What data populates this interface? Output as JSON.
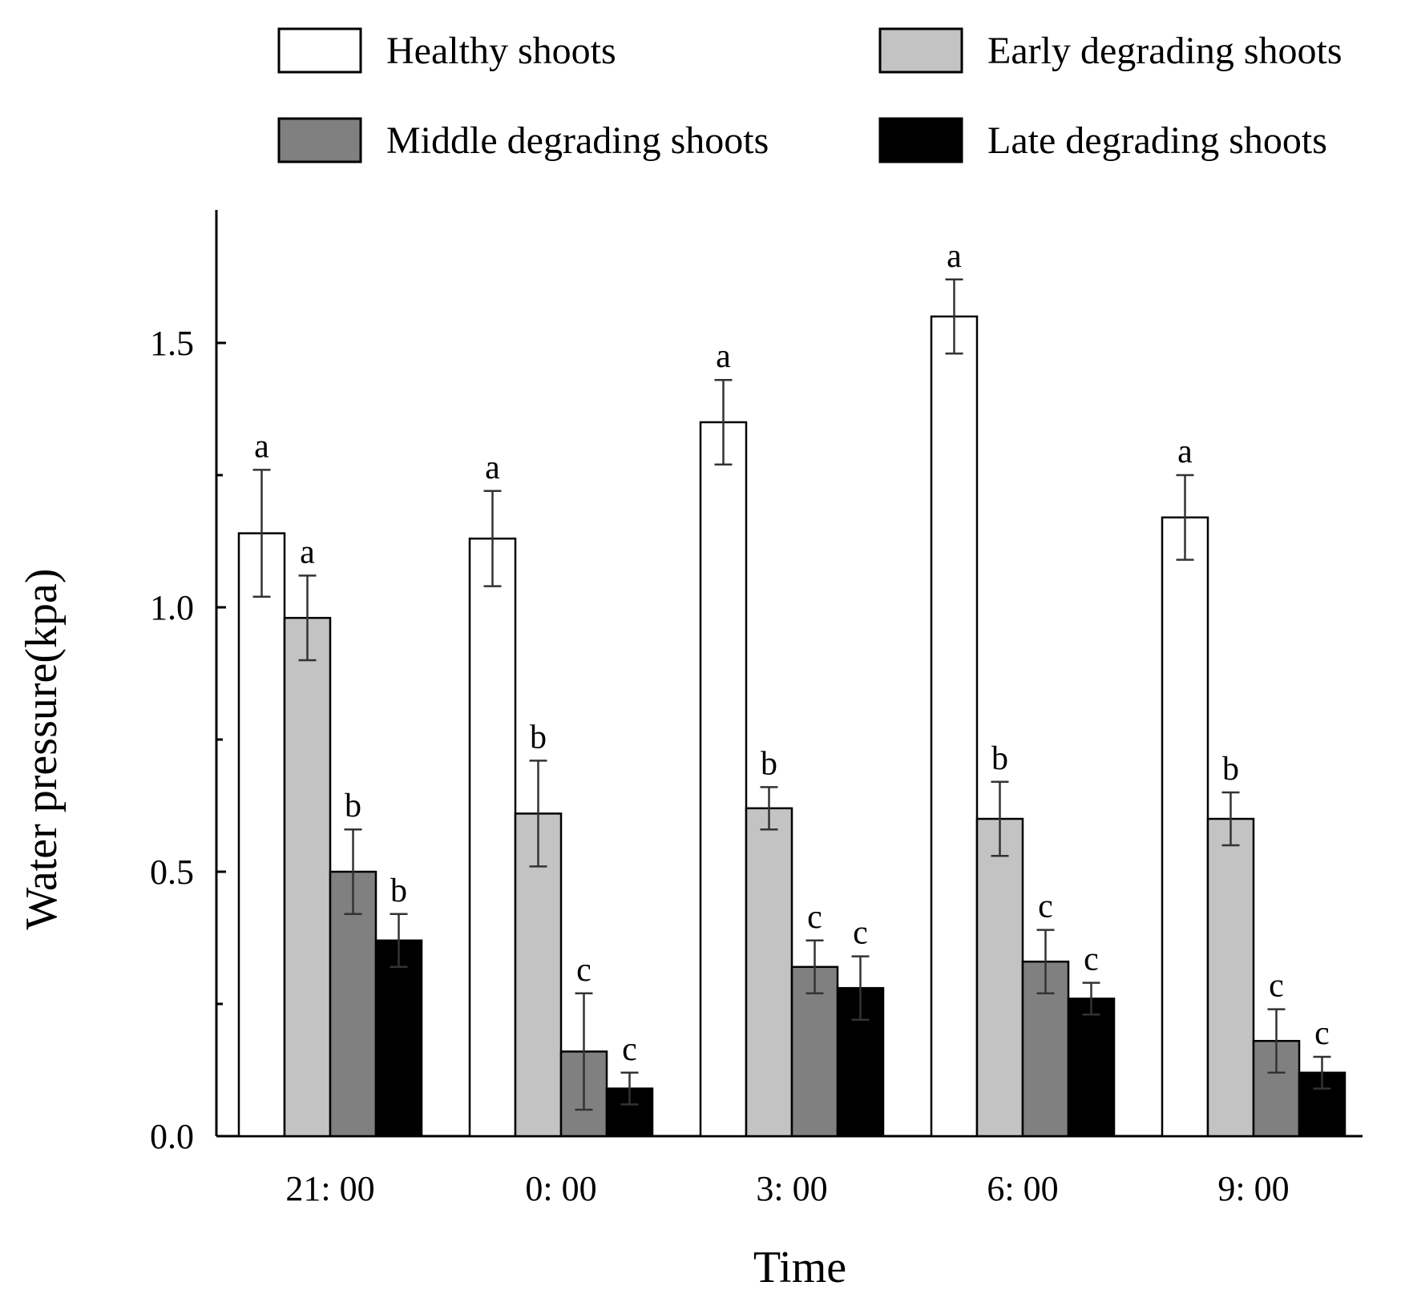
{
  "chart_data": {
    "type": "bar",
    "categories": [
      "21: 00",
      "0: 00",
      "3: 00",
      "6: 00",
      "9: 00"
    ],
    "series": [
      {
        "name": "Healthy shoots",
        "color": "#ffffff",
        "values": [
          1.14,
          1.13,
          1.35,
          1.55,
          1.17
        ],
        "errors": [
          0.12,
          0.09,
          0.08,
          0.07,
          0.08
        ],
        "labels": [
          "a",
          "a",
          "a",
          "a",
          "a"
        ]
      },
      {
        "name": "Early degrading shoots",
        "color": "#c3c3c3",
        "values": [
          0.98,
          0.61,
          0.62,
          0.6,
          0.6
        ],
        "errors": [
          0.08,
          0.1,
          0.04,
          0.07,
          0.05
        ],
        "labels": [
          "a",
          "b",
          "b",
          "b",
          "b"
        ]
      },
      {
        "name": "Middle degrading shoots",
        "color": "#808080",
        "values": [
          0.5,
          0.16,
          0.32,
          0.33,
          0.18
        ],
        "errors": [
          0.08,
          0.11,
          0.05,
          0.06,
          0.06
        ],
        "labels": [
          "b",
          "c",
          "c",
          "c",
          "c"
        ]
      },
      {
        "name": "Late degrading shoots",
        "color": "#000000",
        "values": [
          0.37,
          0.09,
          0.28,
          0.26,
          0.12
        ],
        "errors": [
          0.05,
          0.03,
          0.06,
          0.03,
          0.03
        ],
        "labels": [
          "b",
          "c",
          "c",
          "c",
          "c"
        ]
      }
    ],
    "xlabel": "Time",
    "ylabel": "Water pressure(kpa)",
    "ylim": [
      0,
      1.75
    ],
    "yticks": [
      "0.0",
      "0.5",
      "1.0",
      "1.5"
    ],
    "legend_position": "top",
    "grid": false
  }
}
